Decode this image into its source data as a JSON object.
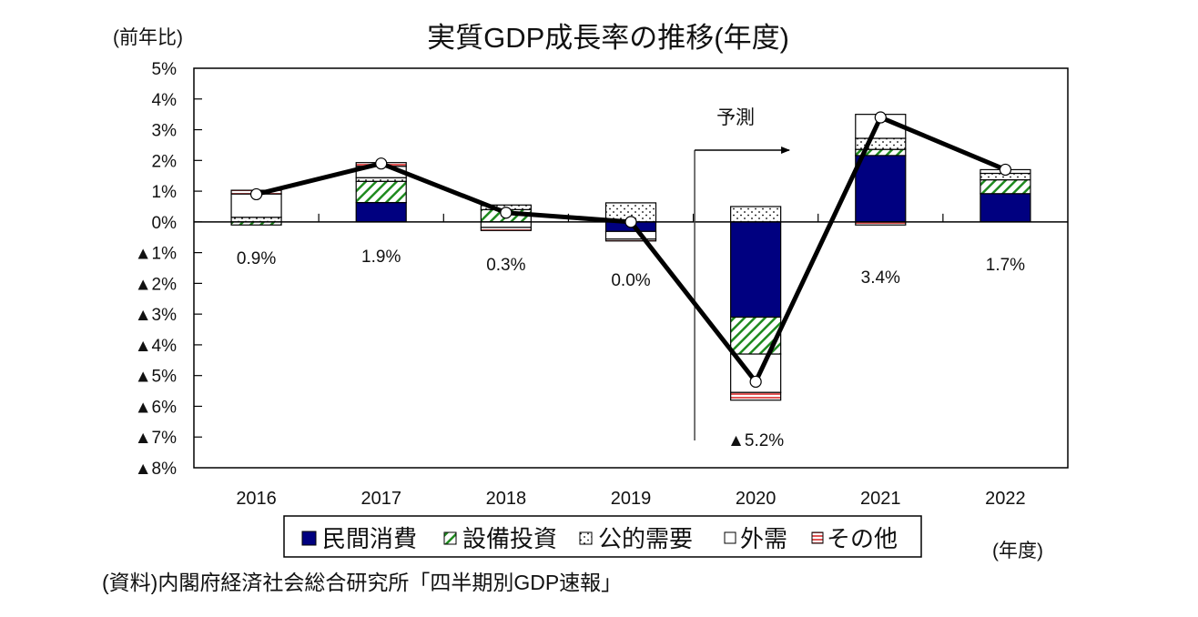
{
  "chart_data": {
    "type": "bar",
    "subtype": "stacked-bar-with-line",
    "title": "実質GDP成長率の推移(年度)",
    "ylabel": "(前年比)",
    "xlabel": "(年度)",
    "categories": [
      "2016",
      "2017",
      "2018",
      "2019",
      "2020",
      "2021",
      "2022"
    ],
    "ylim": [
      -8,
      5
    ],
    "ytick_step": 1,
    "ytick_labels": [
      "5%",
      "4%",
      "3%",
      "2%",
      "1%",
      "0%",
      "▲1%",
      "▲2%",
      "▲3%",
      "▲4%",
      "▲5%",
      "▲6%",
      "▲7%",
      "▲8%"
    ],
    "grid": false,
    "series": [
      {
        "name": "民間消費",
        "fill": "solid",
        "color": "#000080",
        "values": [
          0.0,
          0.63,
          0.0,
          -0.31,
          -3.1,
          2.16,
          0.92
        ]
      },
      {
        "name": "設備投資",
        "fill": "hatch",
        "color": "#1f8a1f",
        "values": [
          -0.1,
          0.69,
          0.4,
          0.0,
          -1.2,
          0.2,
          0.45
        ]
      },
      {
        "name": "公的需要",
        "fill": "dots",
        "color": "#000000",
        "values": [
          0.15,
          0.12,
          0.15,
          0.62,
          0.5,
          0.36,
          0.21
        ]
      },
      {
        "name": "外需",
        "fill": "white",
        "color": "#ffffff",
        "values": [
          0.76,
          0.37,
          -0.18,
          -0.25,
          -1.25,
          0.78,
          0.12
        ]
      },
      {
        "name": "その他",
        "fill": "stripes",
        "color": "#e05555",
        "values": [
          0.12,
          0.12,
          -0.1,
          -0.06,
          -0.25,
          -0.1,
          0.0
        ]
      }
    ],
    "line": {
      "name": "実質GDP成長率",
      "color": "#000000",
      "values": [
        0.9,
        1.9,
        0.3,
        0.0,
        -5.2,
        3.4,
        1.7
      ]
    },
    "data_labels": [
      "0.9%",
      "1.9%",
      "0.3%",
      "0.0%",
      "▲5.2%",
      "3.4%",
      "1.7%"
    ],
    "annotation": {
      "text": "予測",
      "from_category": "2020",
      "arrow": "right"
    },
    "legend": {
      "placement": "bottom"
    },
    "source": "(資料)内閣府経済社会総合研究所「四半期別GDP速報」"
  }
}
